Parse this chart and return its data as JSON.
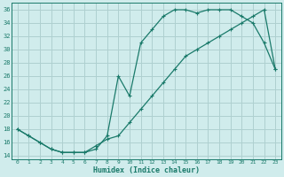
{
  "xlabel": "Humidex (Indice chaleur)",
  "background_color": "#d0ecec",
  "grid_color": "#aed0d0",
  "line_color": "#1a7a6a",
  "line1_x": [
    0,
    1,
    2,
    3,
    4,
    5,
    6,
    7,
    8,
    9,
    10,
    11,
    12,
    13,
    14,
    15,
    16,
    17,
    18,
    19,
    20,
    21,
    22,
    23
  ],
  "line1_y": [
    18,
    17,
    16,
    15,
    14.5,
    14.5,
    14.5,
    15,
    17,
    26,
    23,
    31,
    33,
    35,
    36,
    36,
    35.5,
    36,
    36,
    36,
    35,
    34,
    31,
    27
  ],
  "line2_x": [
    0,
    1,
    2,
    3,
    4,
    5,
    6,
    7,
    8,
    9,
    10,
    11,
    12,
    13,
    14,
    15,
    16,
    17,
    18,
    19,
    20,
    21,
    22,
    23
  ],
  "line2_y": [
    18,
    17,
    16,
    15,
    14.5,
    14.5,
    14.5,
    15.5,
    16.5,
    17,
    19,
    21,
    23,
    25,
    27,
    29,
    30,
    31,
    32,
    33,
    34,
    35,
    36,
    27
  ],
  "xlim": [
    -0.5,
    23.5
  ],
  "ylim": [
    13.5,
    37
  ],
  "yticks": [
    14,
    16,
    18,
    20,
    22,
    24,
    26,
    28,
    30,
    32,
    34,
    36
  ],
  "xticks": [
    0,
    1,
    2,
    3,
    4,
    5,
    6,
    7,
    8,
    9,
    10,
    11,
    12,
    13,
    14,
    15,
    16,
    17,
    18,
    19,
    20,
    21,
    22,
    23
  ]
}
